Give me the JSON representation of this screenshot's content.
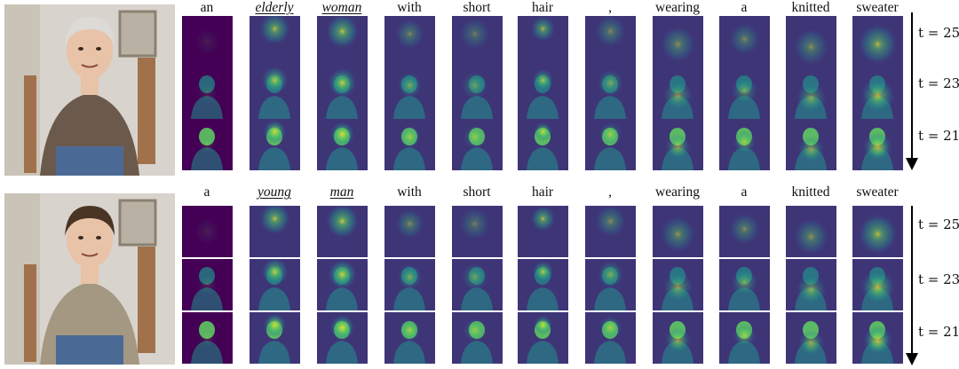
{
  "panels": [
    {
      "id": "elderly",
      "photo_icon": "elderly-woman-portrait",
      "tokens": [
        {
          "text": "an",
          "emph": false
        },
        {
          "text": "elderly",
          "emph": true
        },
        {
          "text": "woman",
          "emph": true
        },
        {
          "text": "with",
          "emph": false
        },
        {
          "text": "short",
          "emph": false
        },
        {
          "text": "hair",
          "emph": false
        },
        {
          "text": ",",
          "emph": false
        },
        {
          "text": "wearing",
          "emph": false
        },
        {
          "text": "a",
          "emph": false
        },
        {
          "text": "knitted",
          "emph": false
        },
        {
          "text": "sweater",
          "emph": false
        }
      ],
      "timesteps": [
        "t = 25",
        "t = 23",
        "t = 21"
      ]
    },
    {
      "id": "young",
      "photo_icon": "young-man-portrait",
      "tokens": [
        {
          "text": "a",
          "emph": false
        },
        {
          "text": "young",
          "emph": true
        },
        {
          "text": "man",
          "emph": true
        },
        {
          "text": "with",
          "emph": false
        },
        {
          "text": "short",
          "emph": false
        },
        {
          "text": "hair",
          "emph": false
        },
        {
          "text": ",",
          "emph": false
        },
        {
          "text": "wearing",
          "emph": false
        },
        {
          "text": "a",
          "emph": false
        },
        {
          "text": "knitted",
          "emph": false
        },
        {
          "text": "sweater",
          "emph": false
        }
      ],
      "timesteps": [
        "t = 25",
        "t = 23",
        "t = 21"
      ]
    }
  ],
  "colormap": [
    "#440154",
    "#3b528b",
    "#21918c",
    "#5ec962",
    "#fde725"
  ]
}
